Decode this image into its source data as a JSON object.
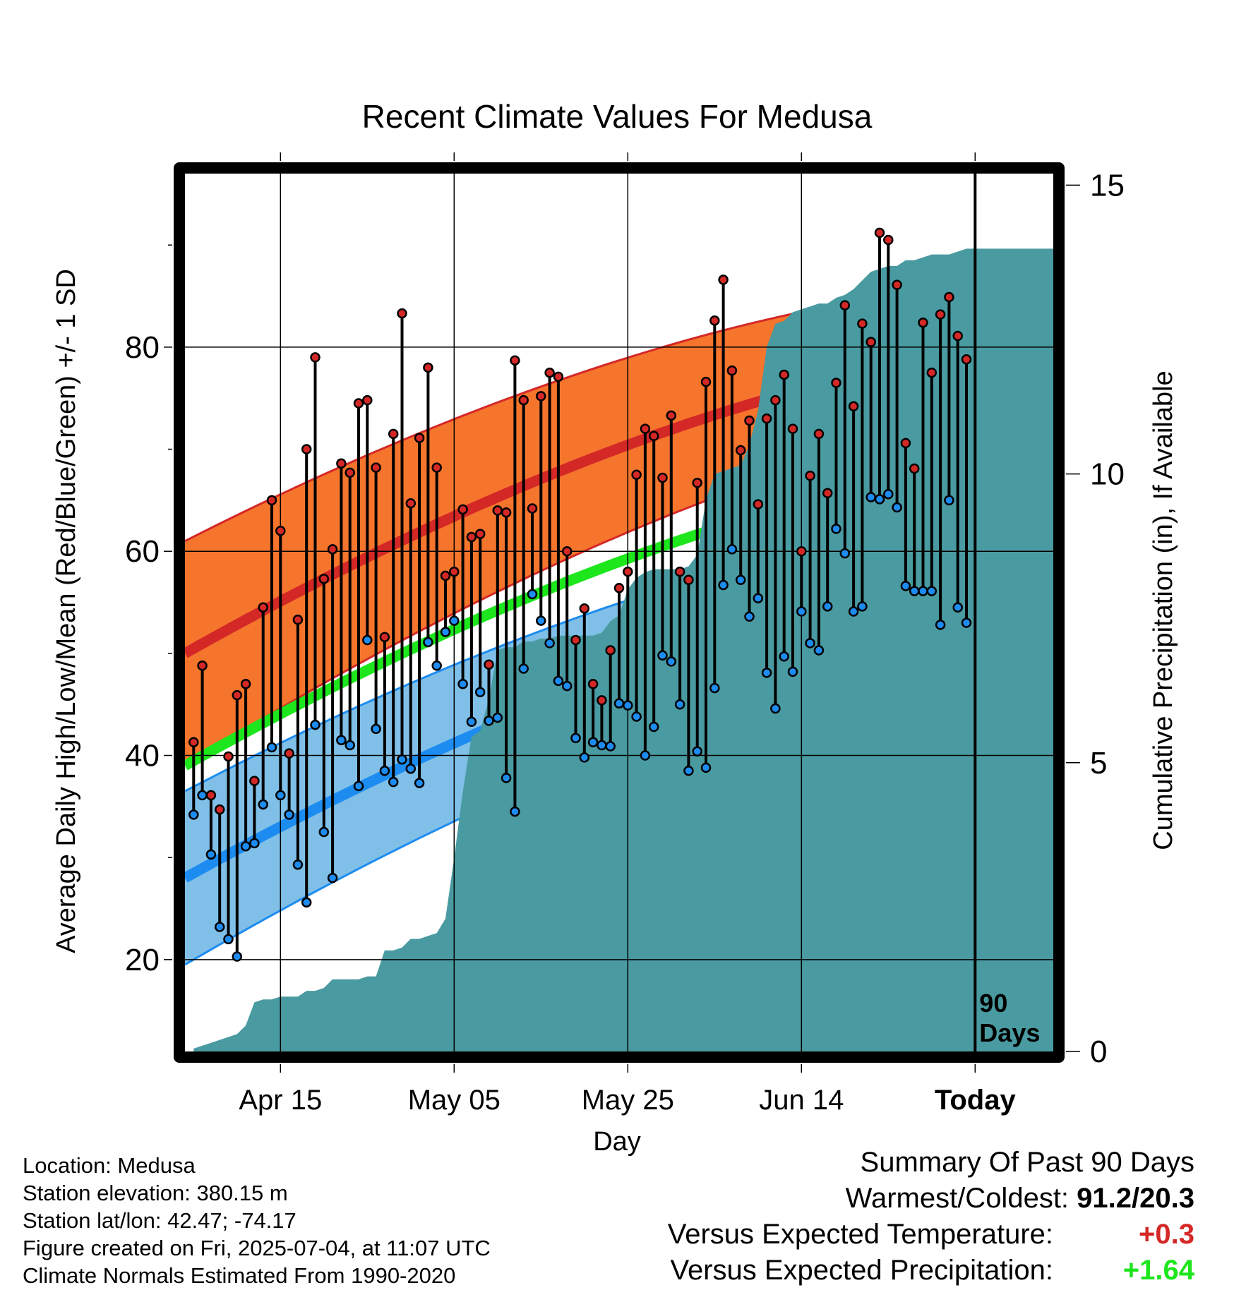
{
  "chart_data": {
    "type": "line",
    "title": "Recent Climate Values For Medusa",
    "xlabel": "Day",
    "ylabel": "Average Daily High/Low/Mean (Red/Blue/Green) +/- 1 SD",
    "y2label": "Cumulative Precipitation (in), If Available",
    "x_start": "2025-04-05",
    "x_ticks": [
      "Apr 15",
      "May 05",
      "May 25",
      "Jun 14",
      "Today"
    ],
    "xlim": [
      "2025-04-04",
      "2025-07-13"
    ],
    "ylim": [
      11,
      97
    ],
    "y_ticks": [
      20,
      40,
      60,
      80
    ],
    "y2lim": [
      0,
      15.2
    ],
    "y2_ticks": [
      0,
      5,
      10,
      15
    ],
    "today_marker": "90\nDays",
    "normals": {
      "high": {
        "start": 50.0,
        "end": 80.0,
        "sd_start": 11.0,
        "sd_end": 6.2,
        "color": "#d42827",
        "band_color": "#f5752d"
      },
      "low": {
        "start": 28.0,
        "end": 57.5,
        "sd_start": 8.5,
        "sd_end": 5.8,
        "color": "#1d8cf0",
        "band_color": "#80c0e8"
      },
      "mean": {
        "start": 39.0,
        "end": 68.8,
        "color": "#1de61d"
      }
    },
    "series": [
      {
        "name": "High",
        "color": "#d42827",
        "values": [
          41.3,
          48.8,
          36.1,
          34.7,
          39.9,
          45.9,
          47.0,
          37.5,
          54.5,
          65.0,
          62.0,
          40.2,
          53.3,
          70.0,
          79.0,
          57.3,
          60.2,
          68.6,
          67.7,
          74.5,
          74.8,
          68.2,
          51.6,
          71.5,
          83.3,
          64.7,
          71.1,
          78.0,
          68.2,
          57.6,
          58.0,
          64.1,
          61.4,
          61.7,
          48.9,
          64.0,
          63.8,
          78.7,
          74.8,
          64.2,
          75.2,
          77.5,
          77.1,
          60.0,
          51.3,
          54.4,
          47.0,
          45.4,
          50.3,
          56.4,
          58.0,
          67.5,
          72.0,
          71.3,
          67.2,
          73.3,
          58.0,
          57.2,
          66.7,
          76.6,
          82.6,
          86.6,
          77.7,
          69.9,
          72.8,
          64.6,
          73.0,
          74.8,
          77.3,
          72.0,
          60.0,
          67.4,
          71.5,
          65.7,
          76.5,
          84.1,
          74.2,
          82.3,
          80.5,
          91.2,
          90.5,
          86.1,
          70.6,
          68.1,
          82.4,
          77.5,
          83.2,
          84.9,
          81.1,
          78.8
        ]
      },
      {
        "name": "Low",
        "color": "#1d8cf0",
        "values": [
          34.2,
          36.1,
          30.3,
          23.2,
          22.0,
          20.3,
          31.1,
          31.4,
          35.2,
          40.8,
          36.1,
          34.2,
          29.3,
          25.6,
          43.0,
          32.5,
          28.0,
          41.5,
          41.0,
          37.0,
          51.3,
          42.6,
          38.5,
          37.4,
          39.6,
          38.7,
          37.3,
          51.1,
          48.8,
          52.1,
          53.2,
          47.0,
          43.3,
          46.2,
          43.4,
          43.7,
          37.8,
          34.5,
          48.5,
          55.8,
          53.2,
          51.0,
          47.3,
          46.8,
          41.7,
          39.8,
          41.3,
          41.0,
          40.9,
          45.1,
          44.9,
          43.8,
          40.0,
          42.8,
          49.8,
          49.2,
          45.0,
          38.5,
          40.4,
          38.8,
          46.6,
          56.7,
          60.2,
          57.2,
          53.6,
          55.4,
          48.1,
          44.6,
          49.7,
          48.2,
          54.1,
          51.0,
          50.3,
          54.6,
          62.2,
          59.8,
          54.1,
          54.6,
          65.3,
          65.1,
          65.6,
          64.3,
          56.6,
          56.1,
          56.1,
          56.1,
          52.8,
          65.0,
          54.5,
          53.0
        ]
      },
      {
        "name": "Cumulative Precipitation",
        "color": "#4a9aa1",
        "values": [
          0.05,
          0.1,
          0.15,
          0.2,
          0.25,
          0.3,
          0.45,
          0.85,
          0.9,
          0.9,
          0.95,
          0.95,
          0.95,
          1.05,
          1.05,
          1.1,
          1.25,
          1.25,
          1.25,
          1.25,
          1.3,
          1.3,
          1.75,
          1.75,
          1.8,
          1.95,
          1.95,
          2.0,
          2.05,
          2.3,
          3.35,
          4.5,
          5.45,
          5.55,
          6.1,
          6.95,
          7.0,
          7.0,
          7.1,
          7.1,
          7.15,
          7.15,
          7.2,
          7.2,
          7.2,
          7.2,
          7.2,
          7.25,
          7.45,
          7.55,
          8.0,
          8.2,
          8.3,
          8.35,
          8.35,
          8.35,
          8.35,
          8.4,
          8.6,
          9.55,
          10.0,
          10.05,
          10.1,
          10.15,
          10.5,
          11.1,
          12.2,
          12.6,
          12.65,
          12.8,
          12.85,
          12.9,
          12.95,
          12.95,
          13.05,
          13.1,
          13.2,
          13.35,
          13.5,
          13.55,
          13.6,
          13.6,
          13.7,
          13.7,
          13.75,
          13.8,
          13.8,
          13.8,
          13.85,
          13.9
        ]
      }
    ]
  },
  "footer": {
    "location": "Location: Medusa",
    "elevation": "Station elevation: 380.15 m",
    "latlon": "Station lat/lon: 42.47; -74.17",
    "created": "Figure created on Fri, 2025-07-04, at 11:07 UTC",
    "normals_note": "Climate Normals Estimated From 1990-2020"
  },
  "summary": {
    "heading": "Summary Of Past 90 Days",
    "warmest_label": "Warmest/Coldest:",
    "warmest_value": "91.2/20.3",
    "temp_label": "Versus Expected Temperature:",
    "temp_value": "+0.3",
    "temp_color": "#d42827",
    "precip_label": "Versus Expected Precipitation:",
    "precip_value": "+1.64",
    "precip_color": "#1de61d"
  }
}
